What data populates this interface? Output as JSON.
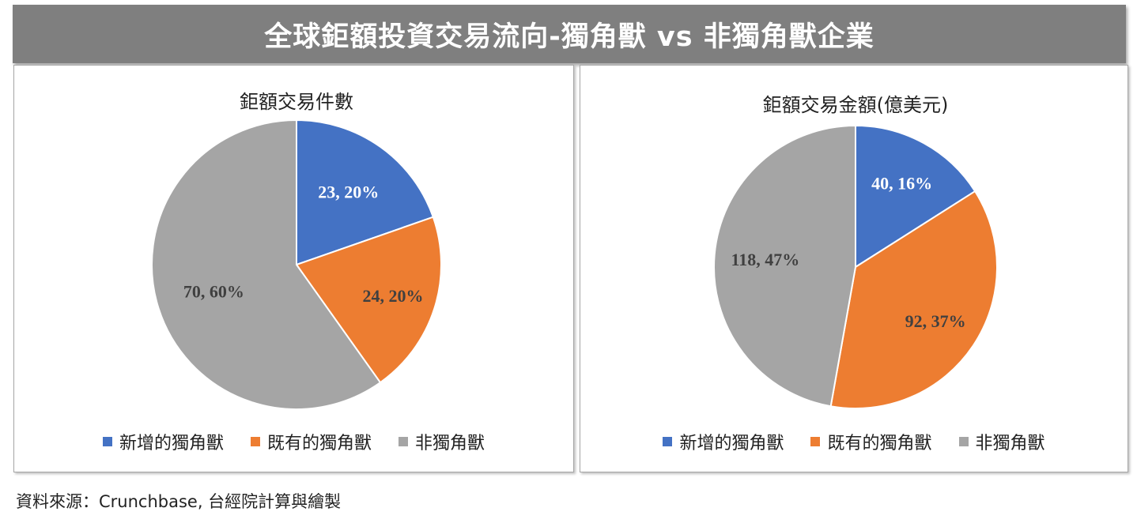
{
  "banner": {
    "title": "全球鉅額投資交易流向-獨角獸 vs 非獨角獸企業"
  },
  "colors": {
    "new_unicorn": "#4472c4",
    "existing_unicorn": "#ed7d31",
    "non_unicorn": "#a5a5a5",
    "banner_bg": "#7f7f7f"
  },
  "chart_data": [
    {
      "type": "pie",
      "title": "鉅額交易件數",
      "categories": [
        "新增的獨角獸",
        "既有的獨角獸",
        "非獨角獸"
      ],
      "values": [
        23,
        24,
        70
      ],
      "percent_labels": [
        "20%",
        "20%",
        "60%"
      ],
      "data_labels": [
        "23, 20%",
        "24, 20%",
        "70, 60%"
      ],
      "legend_position": "bottom"
    },
    {
      "type": "pie",
      "title": "鉅額交易金額(億美元)",
      "categories": [
        "新增的獨角獸",
        "既有的獨角獸",
        "非獨角獸"
      ],
      "values": [
        40,
        92,
        118
      ],
      "percent_labels": [
        "16%",
        "37%",
        "47%"
      ],
      "data_labels": [
        "40, 16%",
        "92, 37%",
        "118, 47%"
      ],
      "legend_position": "bottom"
    }
  ],
  "source": {
    "text": "資料來源：Crunchbase, 台經院計算與繪製"
  }
}
